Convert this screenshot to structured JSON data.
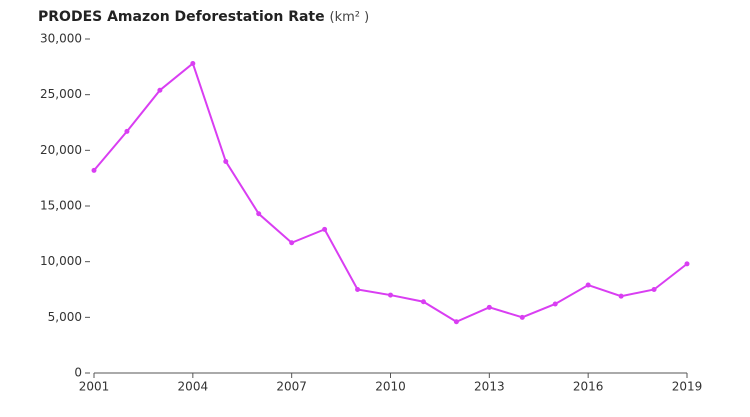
{
  "chart_data": {
    "type": "line",
    "title": "PRODES Amazon Deforestation Rate",
    "unit": "(km² )",
    "x": [
      2001,
      2002,
      2003,
      2004,
      2005,
      2006,
      2007,
      2008,
      2009,
      2010,
      2011,
      2012,
      2013,
      2014,
      2015,
      2016,
      2017,
      2018,
      2019
    ],
    "series": [
      {
        "color": "#d93ef2",
        "values": [
          18200,
          21700,
          25400,
          27800,
          19000,
          14300,
          11700,
          12900,
          7500,
          7000,
          6400,
          4600,
          5900,
          5000,
          6200,
          7900,
          6900,
          7500,
          9800
        ]
      }
    ],
    "xlim": [
      2001,
      2019
    ],
    "xticks": [
      2001,
      2004,
      2007,
      2010,
      2013,
      2016,
      2019
    ],
    "ylim": [
      0,
      30000
    ],
    "yticks": [
      0,
      {
        "value": 5000,
        "label": "5,000"
      },
      {
        "value": 10000,
        "label": "10,000"
      },
      {
        "value": 15000,
        "label": "15,000"
      },
      {
        "value": 20000,
        "label": "20,000"
      },
      {
        "value": 25000,
        "label": "25,000"
      },
      {
        "value": 30000,
        "label": "30,000"
      }
    ],
    "grid": false
  }
}
